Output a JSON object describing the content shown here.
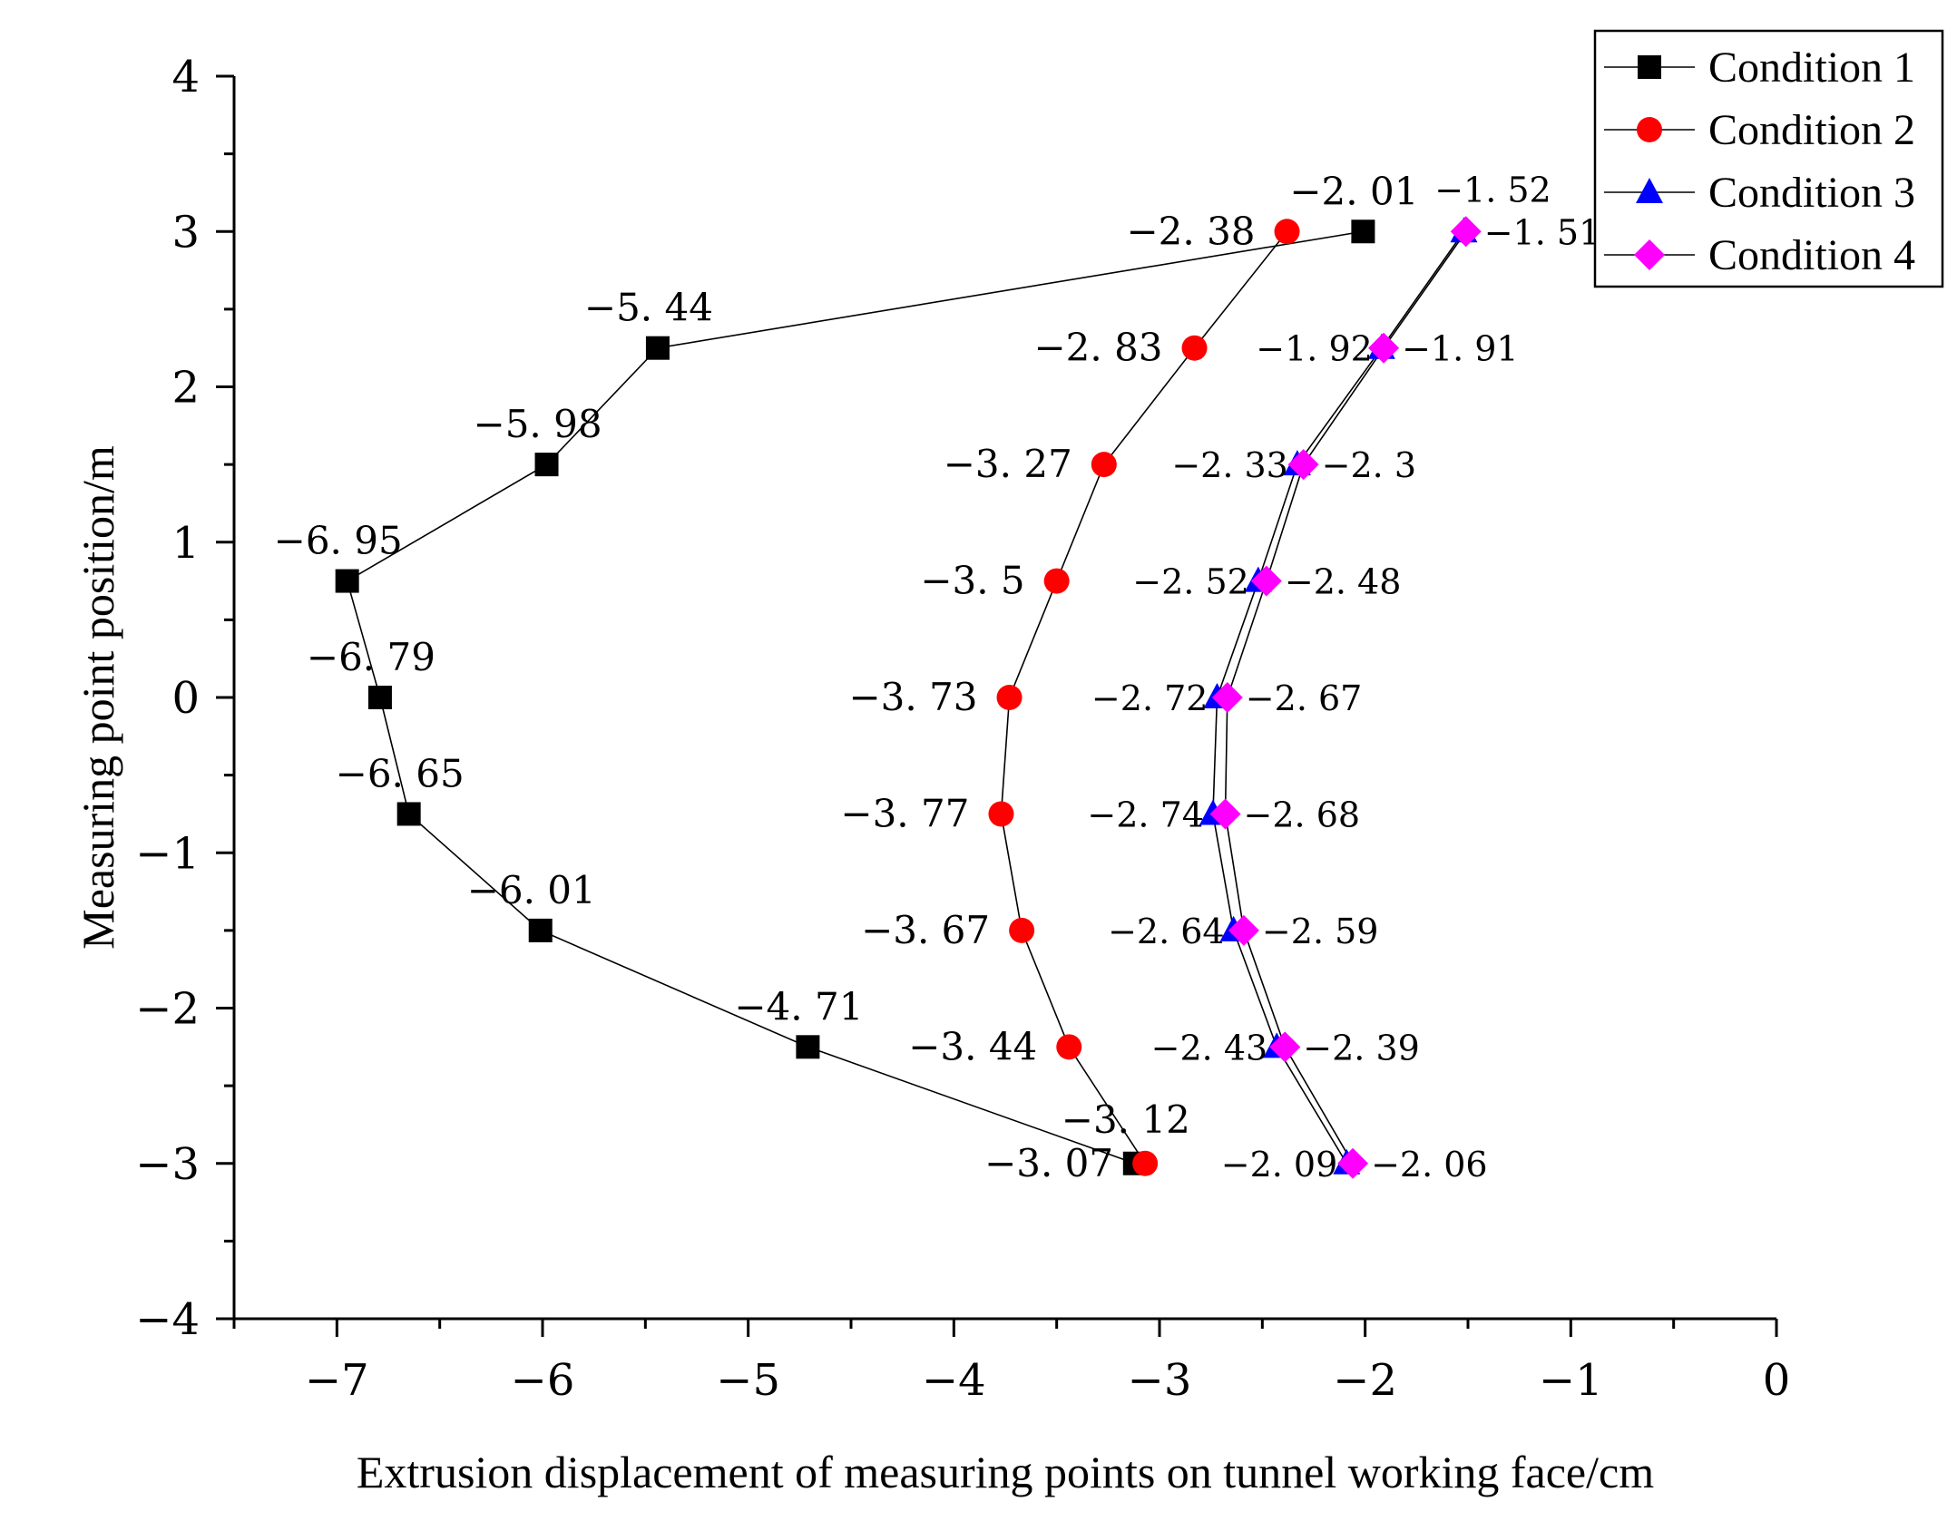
{
  "chart_data": {
    "type": "line",
    "title": "",
    "xlabel": "Extrusion displacement of measuring points on tunnel working face/cm",
    "ylabel": "Measuring point position/m",
    "xlim": [
      -7.5,
      0
    ],
    "ylim": [
      -4,
      4
    ],
    "x_ticks": [
      "−7",
      "−6",
      "−5",
      "−4",
      "−3",
      "−2",
      "−1",
      "0"
    ],
    "y_ticks": [
      "4",
      "3",
      "2",
      "1",
      "0",
      "−1",
      "−2",
      "−3",
      "−4"
    ],
    "y_positions": [
      3,
      2.25,
      1.5,
      0.75,
      0,
      -0.75,
      -1.5,
      -2.25,
      -3
    ],
    "legend_position": "top-right",
    "series": [
      {
        "name": "Condition 1",
        "marker": "square",
        "color": "#000000",
        "x": [
          -2.01,
          -5.44,
          -5.98,
          -6.95,
          -6.79,
          -6.65,
          -6.01,
          -4.71,
          -3.12
        ],
        "labels": [
          "−2. 01",
          "−5. 44",
          "−5. 98",
          "−6. 95",
          "−6. 79",
          "−6. 65",
          "−6. 01",
          "−4. 71",
          "−3. 12"
        ]
      },
      {
        "name": "Condition 2",
        "marker": "circle",
        "color": "#ff0000",
        "x": [
          -2.38,
          -2.83,
          -3.27,
          -3.5,
          -3.73,
          -3.77,
          -3.67,
          -3.44,
          -3.07
        ],
        "labels": [
          "−2. 38",
          "−2. 83",
          "−3. 27",
          "−3. 5",
          "−3. 73",
          "−3. 77",
          "−3. 67",
          "−3. 44",
          "−3. 07"
        ]
      },
      {
        "name": "Condition 3",
        "marker": "triangle",
        "color": "#0000ff",
        "x": [
          -1.52,
          -1.92,
          -2.33,
          -2.52,
          -2.72,
          -2.74,
          -2.64,
          -2.43,
          -2.09
        ],
        "labels": [
          "−1. 52",
          "−1. 92",
          "−2. 33",
          "−2. 52",
          "−2. 72",
          "−2. 74",
          "−2. 64",
          "−2. 43",
          "−2. 09"
        ]
      },
      {
        "name": "Condition 4",
        "marker": "diamond",
        "color": "#ff00ff",
        "x": [
          -1.51,
          -1.91,
          -2.3,
          -2.48,
          -2.67,
          -2.68,
          -2.59,
          -2.39,
          -2.06
        ],
        "labels": [
          "−1. 51",
          "−1. 91",
          "−2. 3",
          "−2. 48",
          "−2. 67",
          "−2. 68",
          "−2. 59",
          "−2. 39",
          "−2. 06"
        ]
      }
    ]
  }
}
